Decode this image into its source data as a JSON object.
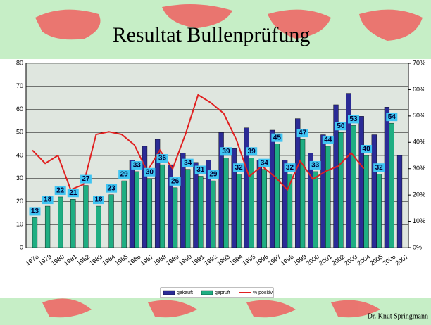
{
  "chart_data": {
    "type": "bar",
    "title": "Resultat Bullenprüfung",
    "footer": "Dr. Knut Springmann",
    "categories": [
      "1978",
      "1979",
      "1980",
      "1981",
      "1982",
      "1983",
      "1984",
      "1985",
      "1986",
      "1987",
      "1988",
      "1989",
      "1990",
      "1991",
      "1992",
      "1993",
      "1994",
      "1995",
      "1996",
      "1997",
      "1998",
      "1999",
      "2000",
      "2001",
      "2002",
      "2003",
      "2004",
      "2005",
      "2006",
      "2007"
    ],
    "series": [
      {
        "name": "gekauft",
        "color": "#2b2b96",
        "values": [
          null,
          null,
          null,
          null,
          null,
          null,
          null,
          null,
          38,
          44,
          47,
          36,
          41,
          37,
          38,
          50,
          43,
          52,
          38,
          51,
          38,
          56,
          41,
          49,
          62,
          67,
          57,
          49,
          61,
          40
        ]
      },
      {
        "name": "geprüft",
        "color": "#1fae82",
        "values": [
          13,
          18,
          22,
          21,
          27,
          18,
          23,
          29,
          33,
          30,
          36,
          26,
          34,
          31,
          29,
          39,
          32,
          39,
          34,
          45,
          32,
          47,
          33,
          44,
          50,
          53,
          40,
          32,
          54,
          null
        ]
      },
      {
        "name": "% positiv",
        "color": "#e02020",
        "axis": "y2",
        "type": "line",
        "values": [
          37,
          32,
          35,
          22,
          24,
          43,
          44,
          43,
          39,
          29,
          37,
          30,
          43,
          58,
          55,
          51,
          41,
          27,
          31,
          27,
          22,
          33,
          26,
          29,
          31,
          36,
          30,
          null,
          null,
          null
        ]
      }
    ],
    "ylim": [
      0,
      80
    ],
    "yticks": [
      0,
      10,
      20,
      30,
      40,
      50,
      60,
      70,
      80
    ],
    "y2lim": [
      0,
      70
    ],
    "y2ticks": [
      {
        "value": 0,
        "label": "0%"
      },
      {
        "value": 10,
        "label": "10%"
      },
      {
        "value": 20,
        "label": "20%"
      },
      {
        "value": 30,
        "label": "30%"
      },
      {
        "value": 40,
        "label": "40%"
      },
      {
        "value": 50,
        "label": "50%"
      },
      {
        "value": 60,
        "label": "60%"
      },
      {
        "value": 70,
        "label": "70%"
      }
    ],
    "data_labels_series": 1,
    "legend": "bottom"
  }
}
